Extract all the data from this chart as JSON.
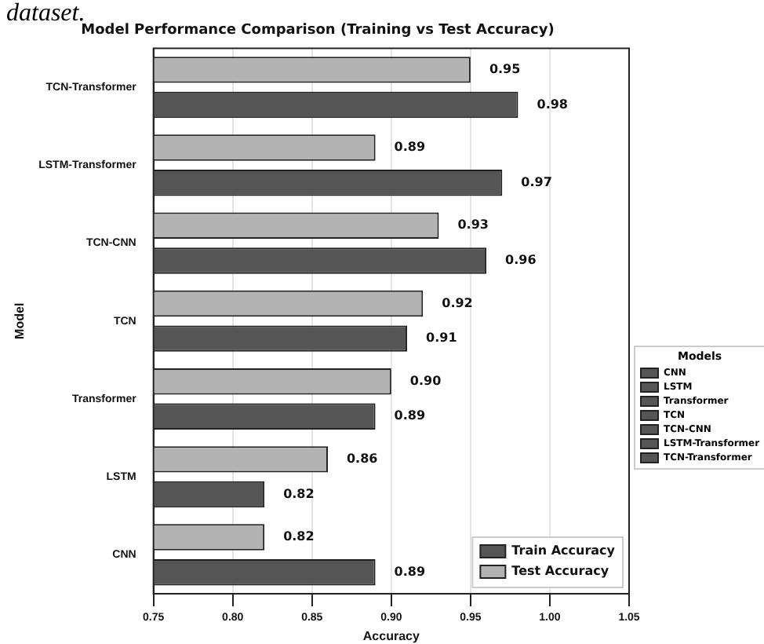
{
  "chart_data": {
    "type": "bar",
    "orientation": "horizontal",
    "title": "Model Performance Comparison (Training vs Test Accuracy)",
    "xlabel": "Accuracy",
    "ylabel": "Model",
    "legend_title": "Models",
    "annotations": [
      "dataset."
    ],
    "categories": [
      "TCN-Transformer",
      "LSTM-Transformer",
      "TCN-CNN",
      "TCN",
      "Transformer",
      "LSTM",
      "CNN"
    ],
    "series": [
      {
        "name": "Train Accuracy",
        "color": "#555555",
        "values": [
          0.98,
          0.97,
          0.96,
          0.91,
          0.89,
          0.82,
          0.89
        ],
        "value_labels": [
          "0.98",
          "0.97",
          "0.96",
          "0.91",
          "0.89",
          "0.82",
          "0.89"
        ]
      },
      {
        "name": "Test Accuracy",
        "color": "#b3b3b3",
        "values": [
          0.95,
          0.89,
          0.93,
          0.92,
          0.9,
          0.86,
          0.82
        ],
        "value_labels": [
          "0.95",
          "0.89",
          "0.93",
          "0.92",
          "0.90",
          "0.86",
          "0.82"
        ]
      }
    ],
    "xlim": [
      0.75,
      1.05
    ],
    "xticks": [
      {
        "value": 0.75,
        "label": "0.75"
      },
      {
        "value": 0.8,
        "label": "0.80"
      },
      {
        "value": 0.85,
        "label": "0.85"
      },
      {
        "value": 0.9,
        "label": "0.90"
      },
      {
        "value": 0.95,
        "label": "0.95"
      },
      {
        "value": 1.0,
        "label": "1.00"
      },
      {
        "value": 1.05,
        "label": "1.05"
      }
    ],
    "grid": "x",
    "legend": "bottom right"
  }
}
